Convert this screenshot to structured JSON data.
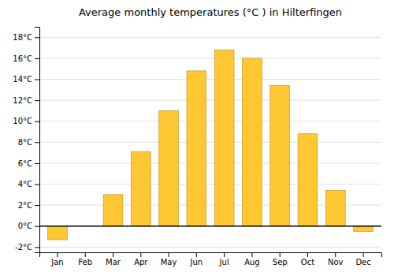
{
  "chart_data": {
    "type": "bar",
    "title": "Average monthly temperatures (°C ) in Hilterfingen",
    "categories": [
      "Jan",
      "Feb",
      "Mar",
      "Apr",
      "May",
      "Jun",
      "Jul",
      "Aug",
      "Sep",
      "Oct",
      "Nov",
      "Dec"
    ],
    "values": [
      -1.3,
      0.0,
      3.0,
      7.1,
      11.0,
      14.8,
      16.8,
      16.0,
      13.4,
      8.8,
      3.4,
      -0.5
    ],
    "color": "#FFC832",
    "ylim": [
      -2.5,
      19
    ],
    "yticks": [
      {
        "value": -2,
        "label": "-2°C"
      },
      {
        "value": 0,
        "label": "0°C"
      },
      {
        "value": 2,
        "label": "2°C"
      },
      {
        "value": 4,
        "label": "4°C"
      },
      {
        "value": 6,
        "label": "6°C"
      },
      {
        "value": 8,
        "label": "8°C"
      },
      {
        "value": 10,
        "label": "10°C"
      },
      {
        "value": 12,
        "label": "12°C"
      },
      {
        "value": 14,
        "label": "14°C"
      },
      {
        "value": 16,
        "label": "16°C"
      },
      {
        "value": 18,
        "label": "18°C"
      }
    ],
    "grid": true
  }
}
